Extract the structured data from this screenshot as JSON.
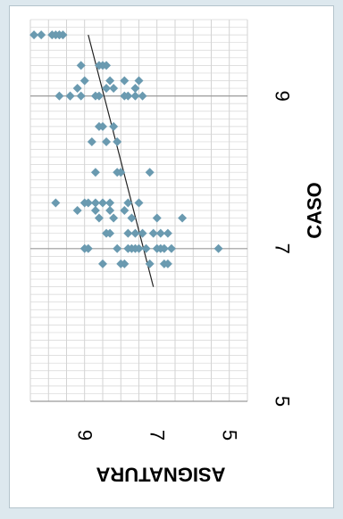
{
  "chart_data": {
    "type": "scatter",
    "title": "",
    "xlabel": "CASO",
    "ylabel": "ASIGNATURA",
    "xlim": [
      5,
      10
    ],
    "ylim": [
      4.5,
      10.5
    ],
    "xticks": [
      "5",
      "7",
      "9"
    ],
    "yticks": [
      "5",
      "7",
      "9"
    ],
    "x_minor_gridline_step": 0.1,
    "grid": true,
    "rotation": "rotated 90 degrees clockwise",
    "marker_color": "#6a9ab0",
    "trendline_color": "#222222",
    "trendline": {
      "x1": 6.5,
      "y1": 7.1,
      "x2": 9.8,
      "y2": 8.9
    },
    "series": [
      {
        "x": [
          9.8,
          9.8,
          9.8,
          9.8,
          9.8,
          9.8,
          9.8,
          9.4,
          9.4,
          9.4,
          9.4,
          9.2,
          9.2,
          9.2,
          9.2,
          9.1,
          9.1,
          9.1,
          9.1,
          9.0,
          9.0,
          9.0,
          9.0,
          9.0,
          9.0,
          9.0,
          9.0,
          9.0,
          9.0,
          8.6,
          8.6,
          8.6,
          8.4,
          8.4,
          8.4,
          8.0,
          8.0,
          8.0,
          8.0,
          7.6,
          7.6,
          7.6,
          7.6,
          7.6,
          7.6,
          7.6,
          7.6,
          7.5,
          7.5,
          7.5,
          7.5,
          7.4,
          7.4,
          7.4,
          7.4,
          7.4,
          7.2,
          7.2,
          7.2,
          7.2,
          7.2,
          7.2,
          7.2,
          7.2,
          7.0,
          7.0,
          7.0,
          7.0,
          7.0,
          7.0,
          7.0,
          7.0,
          7.0,
          7.0,
          7.0,
          7.0,
          7.0,
          6.8,
          6.8,
          6.8,
          6.8,
          6.8,
          6.8
        ],
        "y": [
          10.4,
          10.2,
          9.9,
          9.8,
          9.7,
          9.7,
          9.6,
          9.1,
          8.6,
          8.5,
          8.4,
          9.0,
          8.3,
          7.9,
          7.5,
          9.2,
          8.4,
          8.2,
          7.6,
          9.7,
          9.4,
          9.4,
          9.1,
          8.7,
          8.6,
          7.9,
          7.8,
          7.6,
          7.4,
          8.6,
          8.5,
          8.2,
          8.8,
          8.4,
          8.1,
          8.7,
          8.1,
          8.0,
          7.2,
          9.8,
          9.0,
          8.9,
          8.7,
          8.5,
          8.3,
          7.8,
          7.5,
          9.2,
          8.7,
          8.3,
          7.9,
          8.6,
          8.2,
          7.7,
          7.0,
          6.3,
          8.4,
          8.3,
          7.8,
          7.6,
          7.4,
          7.1,
          6.9,
          6.7,
          9.0,
          8.9,
          8.1,
          7.8,
          7.7,
          7.6,
          7.5,
          7.3,
          7.0,
          6.9,
          6.8,
          6.6,
          5.3,
          8.5,
          8.0,
          7.9,
          7.2,
          6.8,
          6.7
        ]
      }
    ]
  }
}
